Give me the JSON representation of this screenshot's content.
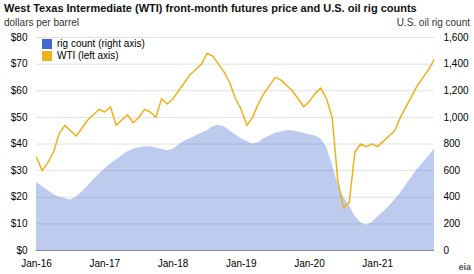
{
  "chart_data": {
    "type": "line",
    "title": "West Texas Intermediate (WTI) front-month futures price and U.S. oil rig counts",
    "ylabel": "dollars per barrel",
    "y2label": "U.S. oil rig count",
    "categories": [
      "Jan-16",
      null,
      null,
      null,
      null,
      null,
      null,
      null,
      null,
      null,
      null,
      null,
      "Jan-17",
      null,
      null,
      null,
      null,
      null,
      null,
      null,
      null,
      null,
      null,
      null,
      "Jan-18",
      null,
      null,
      null,
      null,
      null,
      null,
      null,
      null,
      null,
      null,
      null,
      "Jan-19",
      null,
      null,
      null,
      null,
      null,
      null,
      null,
      null,
      null,
      null,
      null,
      "Jan-20",
      null,
      null,
      null,
      null,
      null,
      null,
      null,
      null,
      null,
      null,
      null,
      "Jan-21",
      null,
      null,
      null,
      null,
      null,
      null,
      null,
      null,
      null,
      null
    ],
    "series": [
      {
        "name": "rig count (right axis)",
        "type": "area",
        "axis": "y2",
        "values": [
          510,
          480,
          450,
          420,
          400,
          390,
          380,
          400,
          440,
          480,
          530,
          570,
          610,
          650,
          680,
          710,
          740,
          760,
          770,
          780,
          780,
          770,
          760,
          750,
          760,
          790,
          820,
          840,
          860,
          880,
          900,
          930,
          940,
          930,
          900,
          870,
          840,
          820,
          800,
          810,
          840,
          860,
          880,
          890,
          900,
          900,
          890,
          880,
          870,
          860,
          840,
          780,
          650,
          500,
          400,
          340,
          260,
          210,
          190,
          210,
          250,
          290,
          330,
          380,
          430,
          490,
          550,
          610,
          660,
          710,
          760
        ]
      },
      {
        "name": "WTI (left axis)",
        "type": "line",
        "values": [
          35,
          30,
          33,
          37,
          44,
          47,
          45,
          43,
          46,
          49,
          51,
          53,
          52,
          54,
          47,
          49,
          51,
          48,
          50,
          53,
          52,
          50,
          57,
          55,
          57,
          60,
          63,
          66,
          68,
          70,
          74,
          73,
          70,
          67,
          63,
          57,
          53,
          47,
          50,
          55,
          59,
          62,
          65,
          64,
          62,
          60,
          57,
          54,
          56,
          59,
          61,
          57,
          50,
          26,
          16,
          18,
          37,
          40,
          39,
          40,
          39,
          41,
          43,
          45,
          50,
          54,
          58,
          62,
          65,
          68,
          72
        ]
      }
    ],
    "ylim": [
      0,
      80
    ],
    "yticks": [
      {
        "value": 0,
        "label": "$0"
      },
      {
        "value": 10,
        "label": "$10"
      },
      {
        "value": 20,
        "label": "$20"
      },
      {
        "value": 30,
        "label": "$30"
      },
      {
        "value": 40,
        "label": "$40"
      },
      {
        "value": 50,
        "label": "$50"
      },
      {
        "value": 60,
        "label": "$60"
      },
      {
        "value": 70,
        "label": "$70"
      },
      {
        "value": 80,
        "label": "$80"
      }
    ],
    "y2lim": [
      0,
      1600
    ],
    "y2ticks": [
      0,
      200,
      400,
      600,
      800,
      {
        "value": 1000,
        "label": "1,000"
      },
      {
        "value": 1200,
        "label": "1,200"
      },
      {
        "value": 1400,
        "label": "1,400"
      },
      {
        "value": 1600,
        "label": "1,600"
      }
    ],
    "grid": true,
    "legend": "upper left",
    "annotations": [
      "eia"
    ]
  }
}
